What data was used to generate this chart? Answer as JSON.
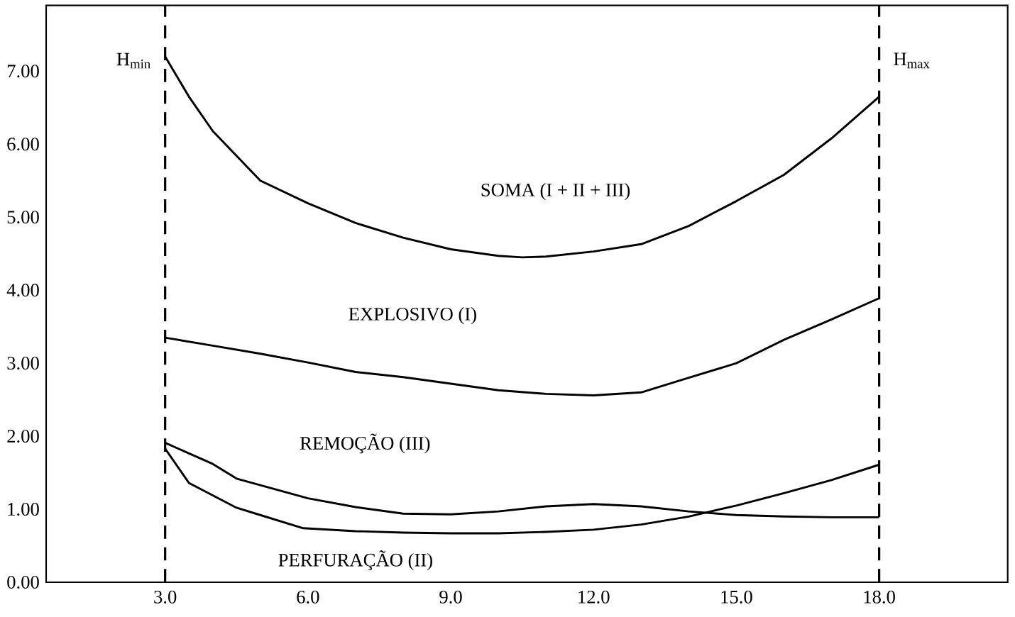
{
  "chart_data": {
    "type": "line",
    "marker": "none",
    "line_style": "solid",
    "legend": false,
    "grid": false,
    "xlim": [
      0.5,
      20.7
    ],
    "ylim": [
      0,
      7.9
    ],
    "xticks": [
      {
        "value": 3,
        "label": "3.0"
      },
      {
        "value": 6,
        "label": "6.0"
      },
      {
        "value": 9,
        "label": "9.0"
      },
      {
        "value": 12,
        "label": "12.0"
      },
      {
        "value": 15,
        "label": "15.0"
      },
      {
        "value": 18,
        "label": "18.0"
      }
    ],
    "yticks": [
      {
        "value": 0,
        "label": "0.00"
      },
      {
        "value": 1,
        "label": "1.00"
      },
      {
        "value": 2,
        "label": "2.00"
      },
      {
        "value": 3,
        "label": "3.00"
      },
      {
        "value": 4,
        "label": "4.00"
      },
      {
        "value": 5,
        "label": "5.00"
      },
      {
        "value": 6,
        "label": "6.00"
      },
      {
        "value": 7,
        "label": "7.00"
      }
    ],
    "ref_lines": [
      {
        "axis": "x",
        "value": 3,
        "label": "H$_{min}$",
        "line_style": "dashed",
        "color": "#000000"
      },
      {
        "axis": "x",
        "value": 18,
        "label": "H$_{max}$",
        "line_style": "dashed",
        "color": "#000000"
      }
    ],
    "series": [
      {
        "name": "SOMA (I + II + III)",
        "color": "#000000",
        "x": [
          3,
          3.5,
          4,
          5,
          6,
          7,
          8,
          9,
          10,
          10.5,
          11,
          12,
          13,
          14,
          15,
          16,
          17,
          18
        ],
        "values": [
          7.2,
          6.65,
          6.18,
          5.5,
          5.19,
          4.92,
          4.72,
          4.56,
          4.47,
          4.45,
          4.46,
          4.53,
          4.63,
          4.88,
          5.22,
          5.58,
          6.08,
          6.65
        ]
      },
      {
        "name": "EXPLOSIVO (I)",
        "color": "#000000",
        "x": [
          3,
          4,
          5,
          6,
          7,
          8,
          9,
          10,
          11,
          12,
          13,
          14,
          15,
          16,
          17,
          18
        ],
        "values": [
          3.35,
          3.24,
          3.13,
          3.01,
          2.88,
          2.81,
          2.72,
          2.63,
          2.58,
          2.56,
          2.6,
          2.8,
          3.0,
          3.32,
          3.6,
          3.89
        ]
      },
      {
        "name": "REMOÇÃO (III)",
        "color": "#000000",
        "x": [
          3,
          4,
          4.5,
          5,
          6,
          7,
          8,
          9,
          10,
          11,
          12,
          13,
          14,
          15,
          16,
          17,
          18
        ],
        "values": [
          1.91,
          1.62,
          1.42,
          1.33,
          1.15,
          1.03,
          0.94,
          0.93,
          0.97,
          1.04,
          1.07,
          1.04,
          0.97,
          0.92,
          0.9,
          0.89,
          0.89
        ]
      },
      {
        "name": "PERFURAÇÃO (II)",
        "color": "#000000",
        "x": [
          3,
          3.5,
          4.5,
          5,
          5.9,
          7,
          8,
          9,
          10,
          11,
          12,
          13,
          14,
          15,
          16,
          17,
          18
        ],
        "values": [
          1.83,
          1.36,
          1.02,
          0.92,
          0.74,
          0.7,
          0.68,
          0.67,
          0.67,
          0.69,
          0.72,
          0.79,
          0.9,
          1.05,
          1.22,
          1.4,
          1.61
        ]
      }
    ]
  }
}
